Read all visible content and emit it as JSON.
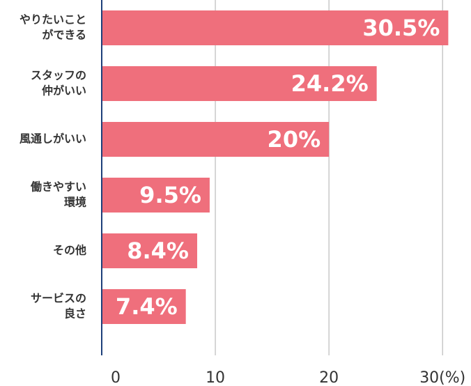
{
  "chart_data": {
    "type": "hbar",
    "categories": [
      [
        "やりたいこと",
        "ができる"
      ],
      [
        "スタッフの",
        "仲がいい"
      ],
      [
        "風通しがいい"
      ],
      [
        "働きやすい",
        "環境"
      ],
      [
        "その他"
      ],
      [
        "サービスの",
        "良さ"
      ]
    ],
    "values": [
      30.5,
      24.2,
      20,
      9.5,
      8.4,
      7.4
    ],
    "value_labels": [
      "30.5%",
      "24.2%",
      "20%",
      "9.5%",
      "8.4%",
      "7.4%"
    ],
    "color": "#ef6f7c",
    "xlim": [
      0,
      32.5
    ],
    "xticks": [
      0,
      10,
      20,
      {
        "value": 30,
        "label": "30(%)"
      }
    ],
    "grid": true
  }
}
